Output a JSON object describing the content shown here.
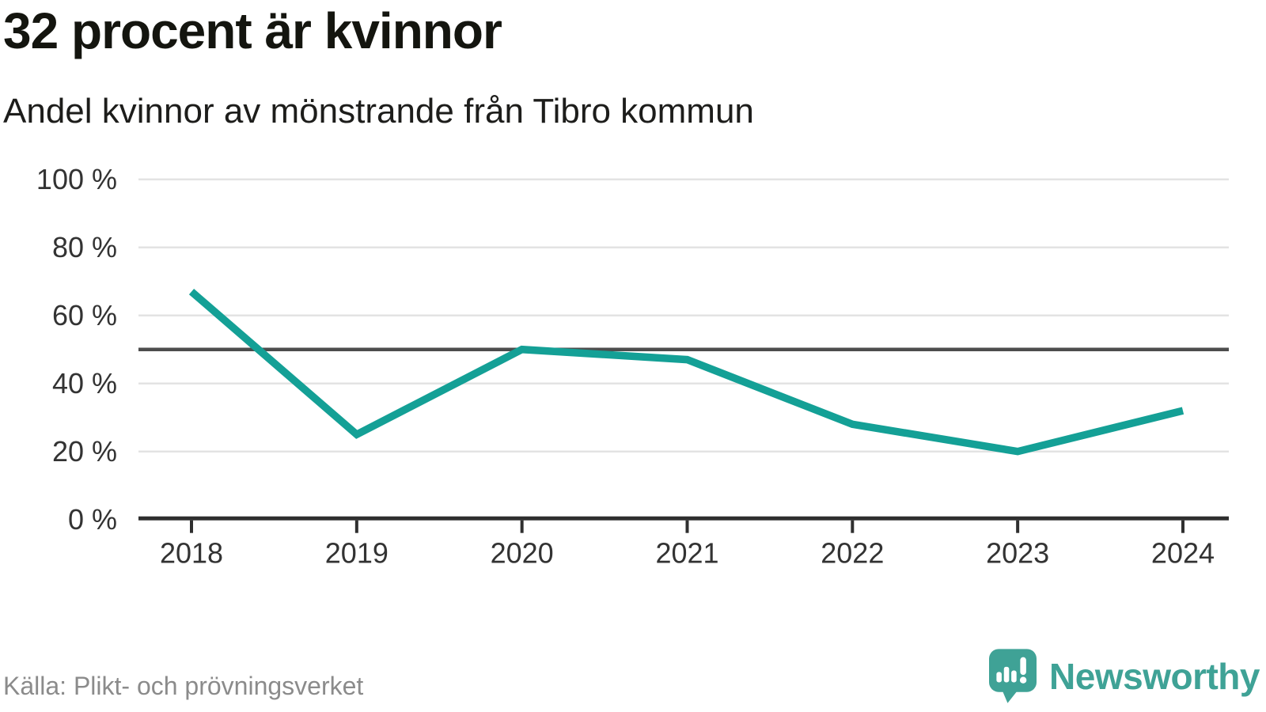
{
  "header": {
    "title": "32 procent är kvinnor",
    "subtitle": "Andel kvinnor av mönstrande från Tibro kommun"
  },
  "chart_data": {
    "type": "line",
    "title": "32 procent är kvinnor",
    "subtitle": "Andel kvinnor av mönstrande från Tibro kommun",
    "x": [
      "2018",
      "2019",
      "2020",
      "2021",
      "2022",
      "2023",
      "2024"
    ],
    "series": [
      {
        "name": "Andel kvinnor av mönstrande",
        "values": [
          67,
          25,
          50,
          47,
          28,
          20,
          32
        ]
      }
    ],
    "unit": "%",
    "ylim": [
      0,
      100
    ],
    "yticks": [
      0,
      20,
      40,
      60,
      80,
      100
    ],
    "ytick_suffix": " %",
    "reference_line": 50,
    "grid": "horizontal",
    "legend": "none",
    "colors": {
      "line": "#14a096",
      "reference_line": "#4d4d4d",
      "axis": "#2f2f2f",
      "gridline": "#e3e3e3",
      "tick_label": "#333333"
    }
  },
  "footer": {
    "source": "Källa: Plikt- och prövningsverket",
    "logo_text": "Newsworthy",
    "logo_color": "#3fa296"
  }
}
